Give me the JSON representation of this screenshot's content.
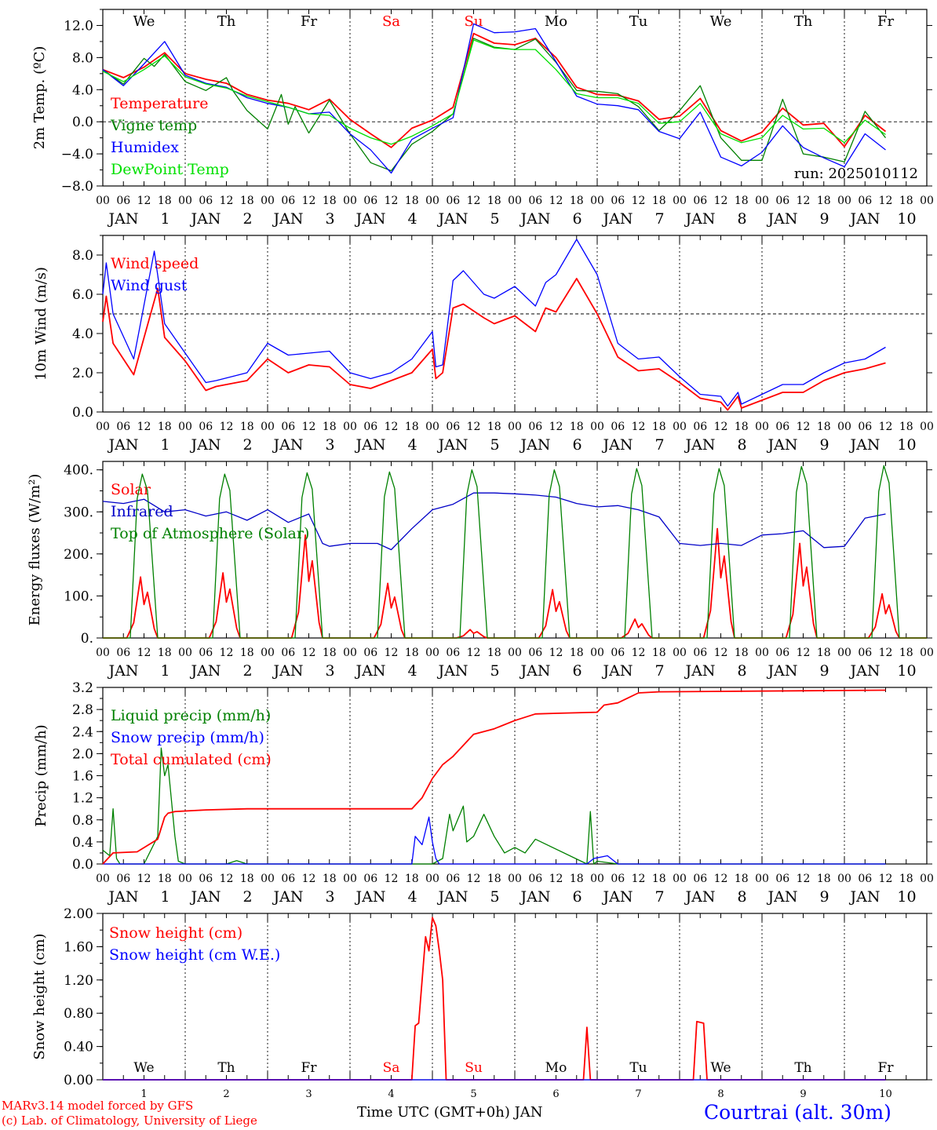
{
  "days": [
    "We",
    "Th",
    "Fr",
    "Sa",
    "Su",
    "Mo",
    "Tu",
    "We",
    "Th",
    "Fr"
  ],
  "weekend_days": [
    "Sa",
    "Su"
  ],
  "dates": [
    "1",
    "2",
    "3",
    "4",
    "5",
    "6",
    "7",
    "8",
    "9",
    "10"
  ],
  "month": "JAN",
  "hour_ticks": [
    "00",
    "06",
    "12",
    "18"
  ],
  "final_hour_tick": "00",
  "colors": {
    "red": "#ff0000",
    "green": "#008000",
    "blue": "#0000ff",
    "lightgreen": "#00e000",
    "darkblue": "#0000c8"
  },
  "footer": {
    "credit_line1": "MARv3.14 model forced by GFS",
    "credit_line2": "(c) Lab. of Climatology, University of Liege",
    "xlabel": "Time UTC (GMT+0h) JAN",
    "location": "Courtrai (alt. 30m)"
  },
  "chart_data": [
    {
      "type": "line",
      "ylabel": "2m Temp. (ºC)",
      "ylim": [
        -8,
        14
      ],
      "yticks": [
        -8,
        -4,
        0,
        4,
        8,
        12
      ],
      "ytick_labels": [
        "−8.0",
        "−4.0",
        "0.0",
        "4.0",
        "8.0",
        "12.0"
      ],
      "ref_line": 0,
      "run_label": "run: 2025010112",
      "x_unit": "hours since JAN 1 00 UTC",
      "series": [
        {
          "name": "Temperature",
          "color": "red",
          "x": [
            0,
            6,
            12,
            18,
            24,
            30,
            36,
            42,
            48,
            54,
            60,
            66,
            72,
            78,
            84,
            90,
            96,
            102,
            108,
            114,
            120,
            126,
            132,
            138,
            144,
            150,
            156,
            162,
            168,
            174,
            180,
            186,
            192,
            198,
            204,
            210,
            216,
            222,
            228
          ],
          "y": [
            6.5,
            5.5,
            6.8,
            8.6,
            6.0,
            5.3,
            4.8,
            3.4,
            2.7,
            2.3,
            1.5,
            2.8,
            0.3,
            -1.5,
            -3.2,
            -0.8,
            0.2,
            1.8,
            11.0,
            9.8,
            9.6,
            10.4,
            8.0,
            4.3,
            3.4,
            3.3,
            2.6,
            0.3,
            0.7,
            2.9,
            -1.1,
            -2.4,
            -1.3,
            1.7,
            -0.4,
            -0.2,
            -3.1,
            0.8,
            -1.2
          ]
        },
        {
          "name": "Vigne temp",
          "color": "green",
          "x": [
            0,
            6,
            9,
            12,
            15,
            18,
            24,
            30,
            36,
            38,
            42,
            48,
            52,
            54,
            56,
            60,
            66,
            72,
            78,
            84,
            90,
            96,
            102,
            108,
            114,
            120,
            126,
            132,
            138,
            144,
            150,
            156,
            162,
            168,
            174,
            180,
            186,
            192,
            198,
            204,
            210,
            216,
            222,
            228
          ],
          "y": [
            6.5,
            4.7,
            6.3,
            7.9,
            6.9,
            8.4,
            5.0,
            3.9,
            5.5,
            3.8,
            1.4,
            -0.9,
            3.4,
            -0.3,
            1.9,
            -1.4,
            2.7,
            -1.5,
            -5.1,
            -6.1,
            -2.8,
            -1.2,
            1.0,
            10.4,
            9.3,
            9.0,
            10.3,
            7.4,
            3.9,
            3.8,
            3.5,
            1.9,
            -1.1,
            1.4,
            4.5,
            -2.0,
            -4.8,
            -4.8,
            2.8,
            -4.0,
            -4.4,
            -5.0,
            1.3,
            -2.0
          ]
        },
        {
          "name": "Humidex",
          "color": "blue",
          "x": [
            0,
            6,
            12,
            18,
            24,
            30,
            36,
            42,
            48,
            54,
            60,
            66,
            72,
            78,
            84,
            90,
            96,
            102,
            108,
            114,
            120,
            126,
            132,
            138,
            144,
            150,
            156,
            162,
            168,
            174,
            180,
            186,
            192,
            198,
            204,
            210,
            216,
            222,
            228
          ],
          "y": [
            6.5,
            4.5,
            7.2,
            10.0,
            5.8,
            4.8,
            4.3,
            3.0,
            2.3,
            1.8,
            1.0,
            1.2,
            -1.5,
            -3.5,
            -6.4,
            -2.2,
            -0.8,
            0.5,
            12.2,
            11.1,
            11.2,
            11.6,
            7.5,
            3.2,
            2.2,
            2.0,
            1.5,
            -1.2,
            -2.1,
            1.2,
            -4.4,
            -5.5,
            -3.8,
            -0.5,
            -3.2,
            -4.5,
            -5.6,
            -1.5,
            -3.5
          ]
        },
        {
          "name": "DewPoint Temp",
          "color": "lightgreen",
          "x": [
            0,
            6,
            12,
            18,
            24,
            30,
            36,
            42,
            48,
            54,
            60,
            66,
            72,
            78,
            84,
            90,
            96,
            102,
            108,
            114,
            120,
            126,
            132,
            138,
            144,
            150,
            156,
            162,
            168,
            174,
            180,
            186,
            192,
            198,
            204,
            210,
            216,
            222,
            228
          ],
          "y": [
            6.3,
            5.0,
            6.5,
            8.2,
            5.6,
            4.7,
            4.2,
            3.2,
            2.5,
            1.8,
            1.0,
            0.8,
            -0.8,
            -2.0,
            -2.8,
            -1.8,
            -0.5,
            1.0,
            10.2,
            9.2,
            9.0,
            9.0,
            6.5,
            3.5,
            3.0,
            3.0,
            2.3,
            -0.2,
            0.0,
            2.3,
            -1.5,
            -2.6,
            -2.0,
            0.8,
            -0.9,
            -0.8,
            -2.6,
            0.2,
            -1.6
          ]
        }
      ]
    },
    {
      "type": "line",
      "ylabel": "10m Wind (m/s)",
      "ylim": [
        0,
        9
      ],
      "yticks": [
        0,
        2,
        4,
        6,
        8
      ],
      "ytick_labels": [
        "0.0",
        "2.0",
        "4.0",
        "6.0",
        "8.0"
      ],
      "ref_line": 5,
      "x_unit": "hours since JAN 1 00 UTC",
      "series": [
        {
          "name": "Wind speed",
          "color": "red",
          "x": [
            0,
            1,
            3,
            9,
            16,
            18,
            24,
            30,
            33,
            42,
            48,
            54,
            60,
            66,
            72,
            78,
            84,
            90,
            96,
            97,
            99,
            102,
            105,
            111,
            114,
            120,
            126,
            129,
            132,
            138,
            144,
            150,
            156,
            162,
            168,
            174,
            180,
            182,
            185,
            186,
            192,
            198,
            204,
            210,
            216,
            222,
            228
          ],
          "y": [
            4.6,
            5.9,
            3.5,
            1.9,
            6.3,
            3.8,
            2.6,
            1.1,
            1.3,
            1.6,
            2.7,
            2.0,
            2.4,
            2.3,
            1.4,
            1.2,
            1.6,
            2.0,
            3.2,
            1.7,
            2.0,
            5.3,
            5.5,
            4.8,
            4.5,
            4.9,
            4.1,
            5.3,
            5.1,
            6.8,
            5.0,
            2.8,
            2.1,
            2.2,
            1.5,
            0.7,
            0.5,
            0.1,
            0.8,
            0.2,
            0.6,
            1.0,
            1.0,
            1.6,
            2.0,
            2.2,
            2.5
          ]
        },
        {
          "name": "Wind gust",
          "color": "blue",
          "x": [
            0,
            1,
            3,
            9,
            15,
            18,
            24,
            30,
            33,
            42,
            48,
            54,
            60,
            66,
            72,
            78,
            84,
            90,
            96,
            97,
            99,
            102,
            105,
            111,
            114,
            120,
            126,
            129,
            132,
            138,
            144,
            150,
            156,
            162,
            168,
            174,
            180,
            182,
            185,
            186,
            192,
            198,
            204,
            210,
            216,
            222,
            228
          ],
          "y": [
            6.0,
            7.6,
            5.0,
            2.7,
            8.2,
            4.5,
            3.0,
            1.5,
            1.6,
            2.0,
            3.5,
            2.9,
            3.0,
            3.1,
            2.0,
            1.7,
            2.0,
            2.7,
            4.1,
            2.3,
            2.4,
            6.7,
            7.2,
            6.0,
            5.8,
            6.4,
            5.4,
            6.6,
            7.0,
            8.8,
            7.0,
            3.5,
            2.7,
            2.8,
            1.8,
            0.9,
            0.8,
            0.3,
            1.0,
            0.4,
            0.9,
            1.4,
            1.4,
            2.0,
            2.5,
            2.7,
            3.3
          ]
        }
      ]
    },
    {
      "type": "line",
      "ylabel": "Energy fluxes (W/m²)",
      "ylim": [
        0,
        420
      ],
      "yticks": [
        0,
        100,
        200,
        300,
        400
      ],
      "ytick_labels": [
        "0.",
        "100.",
        "200.",
        "300.",
        "400."
      ],
      "x_unit": "hours since JAN 1 00 UTC",
      "series": [
        {
          "name": "Solar",
          "color": "red",
          "day_peaks": [
            145,
            155,
            245,
            130,
            20,
            115,
            45,
            260,
            225,
            105
          ]
        },
        {
          "name": "Infrared",
          "color": "darkblue",
          "x": [
            0,
            6,
            12,
            18,
            24,
            30,
            36,
            42,
            48,
            54,
            60,
            64,
            66,
            72,
            78,
            80,
            84,
            90,
            96,
            102,
            108,
            114,
            120,
            126,
            132,
            138,
            144,
            150,
            156,
            162,
            168,
            174,
            180,
            186,
            192,
            198,
            204,
            210,
            216,
            222,
            228
          ],
          "y": [
            325,
            320,
            330,
            300,
            305,
            290,
            300,
            280,
            305,
            275,
            295,
            225,
            218,
            225,
            225,
            225,
            210,
            260,
            305,
            318,
            345,
            345,
            343,
            340,
            335,
            320,
            312,
            315,
            305,
            288,
            225,
            220,
            225,
            220,
            245,
            248,
            255,
            215,
            218,
            285,
            295
          ]
        },
        {
          "name": "Top of Atmosphere (Solar)",
          "color": "green",
          "day_peaks": [
            390,
            390,
            393,
            395,
            400,
            400,
            403,
            403,
            408,
            410
          ]
        }
      ]
    },
    {
      "type": "line",
      "ylabel": "Precip (mm/h)",
      "ylim": [
        0,
        3.2
      ],
      "yticks": [
        0,
        0.4,
        0.8,
        1.2,
        1.6,
        2.0,
        2.4,
        2.8,
        3.2
      ],
      "ytick_labels": [
        "0.0",
        "0.4",
        "0.8",
        "1.2",
        "1.6",
        "2.0",
        "2.4",
        "2.8",
        "3.2"
      ],
      "x_unit": "hours since JAN 1 00 UTC",
      "series": [
        {
          "name": "Liquid precip (mm/h)",
          "color": "green",
          "x": [
            0,
            2,
            3,
            4,
            5,
            6,
            12,
            16,
            17,
            18,
            19,
            21,
            22,
            24,
            36,
            39,
            42,
            96,
            99,
            100,
            101,
            102,
            105,
            106,
            108,
            111,
            114,
            117,
            120,
            123,
            126,
            141,
            142,
            143,
            144,
            150,
            228
          ],
          "y": [
            0.25,
            0.15,
            1.0,
            0.1,
            0.0,
            0.0,
            0.0,
            0.5,
            2.1,
            1.6,
            1.8,
            0.5,
            0.05,
            0.0,
            0.0,
            0.06,
            0.0,
            0.0,
            0.1,
            0.5,
            0.9,
            0.6,
            1.05,
            0.4,
            0.5,
            0.9,
            0.5,
            0.2,
            0.3,
            0.2,
            0.45,
            0.0,
            0.95,
            0.0,
            0.05,
            0.0,
            0.0
          ]
        },
        {
          "name": "Snow precip (mm/h)",
          "color": "blue",
          "x": [
            0,
            90,
            91,
            93,
            95,
            96,
            97,
            98,
            99,
            100,
            141,
            143,
            147,
            150,
            228
          ],
          "y": [
            0.0,
            0.0,
            0.5,
            0.35,
            0.85,
            0.4,
            0.1,
            0.0,
            0.0,
            0.0,
            0.0,
            0.1,
            0.15,
            0.0,
            0.0
          ]
        },
        {
          "name": "Total cumulated (cm)",
          "color": "red",
          "x": [
            0,
            3,
            10,
            16,
            18,
            19,
            21,
            30,
            42,
            90,
            93,
            96,
            99,
            102,
            108,
            114,
            120,
            126,
            132,
            144,
            146,
            150,
            156,
            162,
            228
          ],
          "y": [
            0.0,
            0.2,
            0.22,
            0.45,
            0.85,
            0.92,
            0.95,
            0.98,
            1.0,
            1.0,
            1.2,
            1.55,
            1.8,
            1.95,
            2.35,
            2.45,
            2.6,
            2.72,
            2.73,
            2.75,
            2.88,
            2.92,
            3.1,
            3.12,
            3.15
          ]
        }
      ]
    },
    {
      "type": "line",
      "ylabel": "Snow height (cm)",
      "ylim": [
        0,
        2.0
      ],
      "yticks": [
        0,
        0.4,
        0.8,
        1.2,
        1.6,
        2.0
      ],
      "ytick_labels": [
        "0.00",
        "0.40",
        "0.80",
        "1.20",
        "1.60",
        "2.00"
      ],
      "x_unit": "hours since JAN 1 00 UTC",
      "series": [
        {
          "name": "Snow height (cm)",
          "color": "red",
          "x": [
            0,
            90,
            91,
            92,
            93,
            94,
            95,
            96,
            97,
            98,
            99,
            100,
            102,
            140,
            141,
            142,
            172,
            173,
            175,
            176,
            228
          ],
          "y": [
            0,
            0,
            0.65,
            0.68,
            1.2,
            1.72,
            1.55,
            1.95,
            1.85,
            1.55,
            1.2,
            0.0,
            0.0,
            0.0,
            0.63,
            0.0,
            0.0,
            0.7,
            0.68,
            0.0,
            0
          ]
        },
        {
          "name": "Snow height (cm W.E.)",
          "color": "blue",
          "x": [
            0,
            228
          ],
          "y": [
            0,
            0
          ]
        }
      ]
    }
  ]
}
